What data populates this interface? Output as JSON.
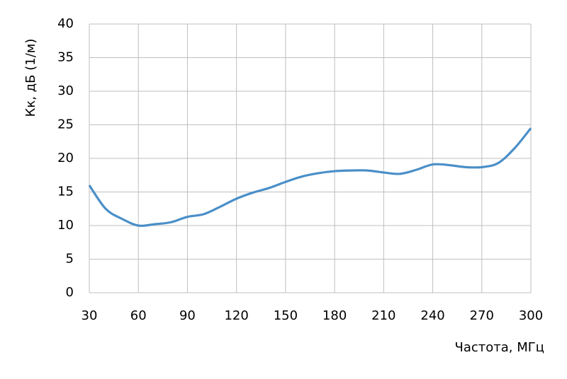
{
  "chart_data": {
    "type": "line",
    "x_label": "Частота, МГц",
    "y_label": "Кк, дБ (1/м)",
    "x": [
      30,
      40,
      50,
      60,
      70,
      80,
      90,
      100,
      110,
      120,
      130,
      140,
      150,
      160,
      170,
      180,
      190,
      200,
      210,
      220,
      230,
      240,
      250,
      260,
      270,
      280,
      290,
      300
    ],
    "series": [
      {
        "name": "Кк",
        "color": "#4a8fc8",
        "values": [
          16,
          12.5,
          11,
          10,
          10.2,
          10.5,
          11.3,
          11.7,
          12.8,
          14,
          14.9,
          15.6,
          16.5,
          17.3,
          17.8,
          18.1,
          18.2,
          18.2,
          17.9,
          17.7,
          18.3,
          19.1,
          19.0,
          18.7,
          18.7,
          19.3,
          21.5,
          24.5
        ]
      }
    ],
    "xlim": [
      30,
      300
    ],
    "xticks": [
      30,
      60,
      90,
      120,
      150,
      180,
      210,
      240,
      270,
      300
    ],
    "ylim": [
      0,
      40
    ],
    "yticks": [
      0,
      5,
      10,
      15,
      20,
      25,
      30,
      35,
      40
    ],
    "grid": true
  }
}
